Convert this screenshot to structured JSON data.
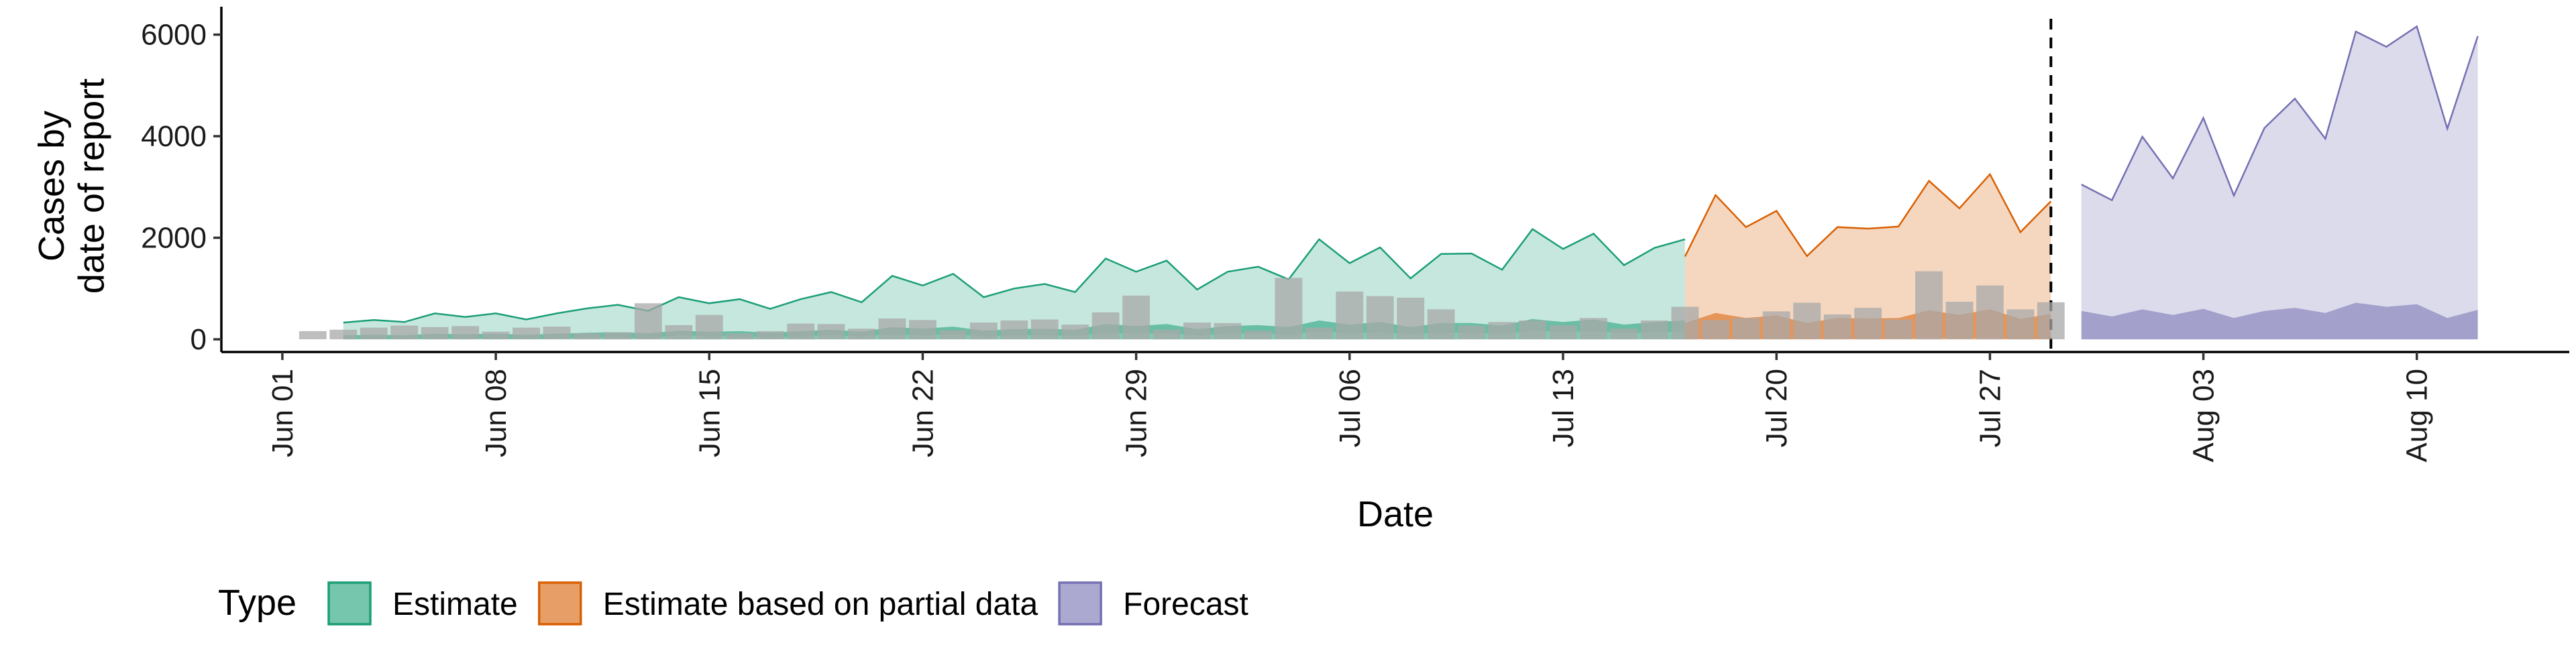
{
  "chart_data": {
    "type": "area",
    "xlabel": "Date",
    "ylabel": [
      "Cases by",
      "date of report"
    ],
    "ylim": [
      -250,
      6550
    ],
    "yticks": [
      0,
      2000,
      4000,
      6000
    ],
    "xticks": [
      {
        "date": "2020-06-01",
        "label": "Jun 01"
      },
      {
        "date": "2020-06-08",
        "label": "Jun 08"
      },
      {
        "date": "2020-06-15",
        "label": "Jun 15"
      },
      {
        "date": "2020-06-22",
        "label": "Jun 22"
      },
      {
        "date": "2020-06-29",
        "label": "Jun 29"
      },
      {
        "date": "2020-07-06",
        "label": "Jul 06"
      },
      {
        "date": "2020-07-13",
        "label": "Jul 13"
      },
      {
        "date": "2020-07-20",
        "label": "Jul 20"
      },
      {
        "date": "2020-07-27",
        "label": "Jul 27"
      },
      {
        "date": "2020-08-03",
        "label": "Aug 03"
      },
      {
        "date": "2020-08-10",
        "label": "Aug 10"
      }
    ],
    "xlim": [
      "2020-05-30",
      "2020-08-15"
    ],
    "forecast_line_date": "2020-07-29",
    "legend": {
      "title": "Type",
      "position": "bottom"
    },
    "series": [
      {
        "name": "Estimate",
        "color": "#1b9e77",
        "start_date": "2020-06-03",
        "upper": [
          330,
          380,
          340,
          510,
          440,
          510,
          390,
          510,
          610,
          680,
          560,
          830,
          710,
          790,
          600,
          790,
          930,
          730,
          1250,
          1060,
          1290,
          830,
          1000,
          1090,
          930,
          1590,
          1330,
          1550,
          980,
          1330,
          1430,
          1180,
          1970,
          1500,
          1810,
          1200,
          1680,
          1690,
          1370,
          2170,
          1780,
          2080,
          1460,
          1800,
          1970
        ],
        "lower": [
          0,
          10,
          0,
          20,
          20,
          20,
          0,
          20,
          40,
          40,
          20,
          80,
          60,
          60,
          40,
          60,
          80,
          60,
          100,
          80,
          100,
          60,
          80,
          80,
          70,
          120,
          110,
          120,
          80,
          110,
          120,
          90,
          160,
          120,
          140,
          100,
          130,
          130,
          110,
          170,
          140,
          160,
          120,
          140,
          150
        ]
      },
      {
        "name": "Estimate based on partial data",
        "color": "#d95f02",
        "start_date": "2020-07-17",
        "upper": [
          1630,
          2840,
          2210,
          2530,
          1640,
          2210,
          2180,
          2220,
          3120,
          2580,
          3250,
          2110,
          2720
        ],
        "lower": [
          0,
          20,
          0,
          20,
          0,
          20,
          0,
          20,
          40,
          20,
          40,
          0,
          20
        ]
      },
      {
        "name": "Forecast",
        "color": "#7570b3",
        "start_date": "2020-07-30",
        "upper": [
          3050,
          2740,
          3990,
          3170,
          4360,
          2830,
          4160,
          4740,
          3950,
          6060,
          5760,
          6160,
          4150,
          5970
        ],
        "lower": [
          0,
          0,
          0,
          0,
          0,
          0,
          0,
          0,
          0,
          0,
          0,
          0,
          0,
          0
        ]
      }
    ],
    "inner_bands": [
      {
        "series": "Estimate",
        "start_date": "2020-06-03",
        "upper": [
          80,
          90,
          80,
          110,
          100,
          110,
          90,
          110,
          130,
          140,
          120,
          170,
          150,
          160,
          130,
          160,
          190,
          150,
          240,
          210,
          250,
          170,
          200,
          210,
          190,
          300,
          260,
          300,
          200,
          260,
          280,
          240,
          370,
          290,
          340,
          240,
          320,
          320,
          270,
          400,
          340,
          390,
          290,
          340,
          370
        ]
      },
      {
        "series": "Estimate based on partial data",
        "start_date": "2020-07-17",
        "upper": [
          320,
          520,
          420,
          470,
          320,
          420,
          410,
          420,
          570,
          480,
          590,
          400,
          500
        ]
      },
      {
        "series": "Forecast",
        "start_date": "2020-07-30",
        "upper": [
          560,
          450,
          590,
          480,
          600,
          420,
          560,
          620,
          520,
          720,
          640,
          690,
          420,
          580
        ]
      }
    ],
    "observed_bars": {
      "color": "#a8a8a8",
      "start_date": "2020-06-02",
      "values": [
        160,
        190,
        230,
        270,
        240,
        260,
        150,
        230,
        250,
        120,
        140,
        710,
        280,
        480,
        120,
        160,
        310,
        300,
        210,
        410,
        380,
        180,
        330,
        370,
        390,
        290,
        530,
        860,
        190,
        330,
        320,
        170,
        1210,
        230,
        940,
        850,
        820,
        590,
        270,
        340,
        370,
        280,
        420,
        210,
        370,
        640,
        380,
        420,
        550,
        720,
        490,
        620,
        390,
        1340,
        740,
        1060,
        590,
        730
      ]
    }
  }
}
